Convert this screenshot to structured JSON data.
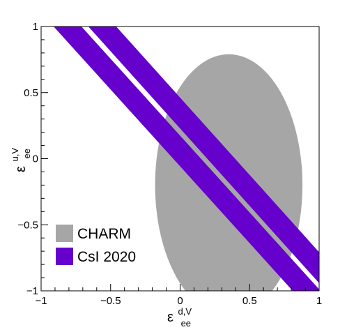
{
  "chart_data": {
    "type": "area",
    "title": "",
    "xlabel": {
      "main": "ε",
      "superscript": "d,V",
      "subscript": "ee"
    },
    "ylabel": {
      "main": "ε",
      "superscript": "u,V",
      "subscript": "ee"
    },
    "xlim": [
      -1,
      1
    ],
    "ylim": [
      -1,
      1
    ],
    "xticks": [
      -1,
      -0.5,
      0,
      0.5,
      1
    ],
    "yticks": [
      -1,
      -0.5,
      0,
      0.5,
      1
    ],
    "xtick_labels": [
      "−1",
      "−0.5",
      "0",
      "0.5",
      "1"
    ],
    "ytick_labels": [
      "−1",
      "−0.5",
      "0",
      "0.5",
      "1"
    ],
    "grid": false,
    "legend_position": "bottom-left",
    "series": [
      {
        "name": "CHARM",
        "color": "#a6a6a6",
        "shape": "ellipse",
        "center": [
          0.35,
          -0.2
        ],
        "radius_x": 0.53,
        "radius_y": 0.99
      },
      {
        "name": "CsI 2020",
        "color": "#6600cc",
        "shape": "bands",
        "bands": [
          {
            "x_at_y_top": [
              -0.91,
              -0.71
            ],
            "x_at_y_bottom": [
              0.81,
              1.01
            ]
          },
          {
            "x_at_y_top": [
              -0.66,
              -0.46
            ],
            "x_at_y_bottom": [
              1.05,
              1.25
            ]
          }
        ]
      }
    ],
    "legend": [
      {
        "label": "CHARM",
        "color": "#a6a6a6"
      },
      {
        "label": "CsI 2020",
        "color": "#6600cc"
      }
    ]
  }
}
